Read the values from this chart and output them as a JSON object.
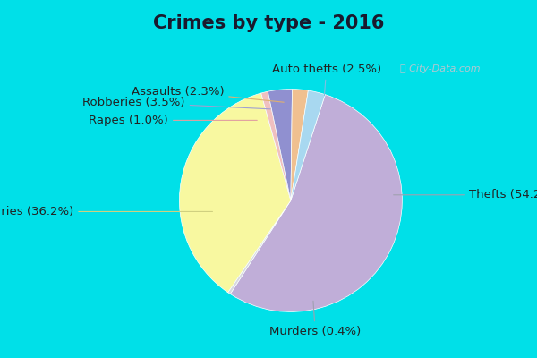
{
  "title": "Crimes by type - 2016",
  "labels_ordered": [
    "Thefts",
    "Murders",
    "Burglaries",
    "Rapes",
    "Robberies",
    "Assaults",
    "Auto thefts"
  ],
  "values_ordered": [
    54.2,
    0.4,
    36.2,
    1.0,
    3.5,
    2.3,
    2.5
  ],
  "colors_ordered": [
    "#c0aed8",
    "#d8d8e0",
    "#f8f8a0",
    "#f0c0c0",
    "#9090d0",
    "#f0c090",
    "#a8d8f0"
  ],
  "background_top": "#00e0e8",
  "background_main_top": "#c8e8e0",
  "background_main_bottom": "#c8e0d0",
  "title_fontsize": 15,
  "label_fontsize": 9.5,
  "startangle": 72,
  "watermark": "City-Data.com"
}
